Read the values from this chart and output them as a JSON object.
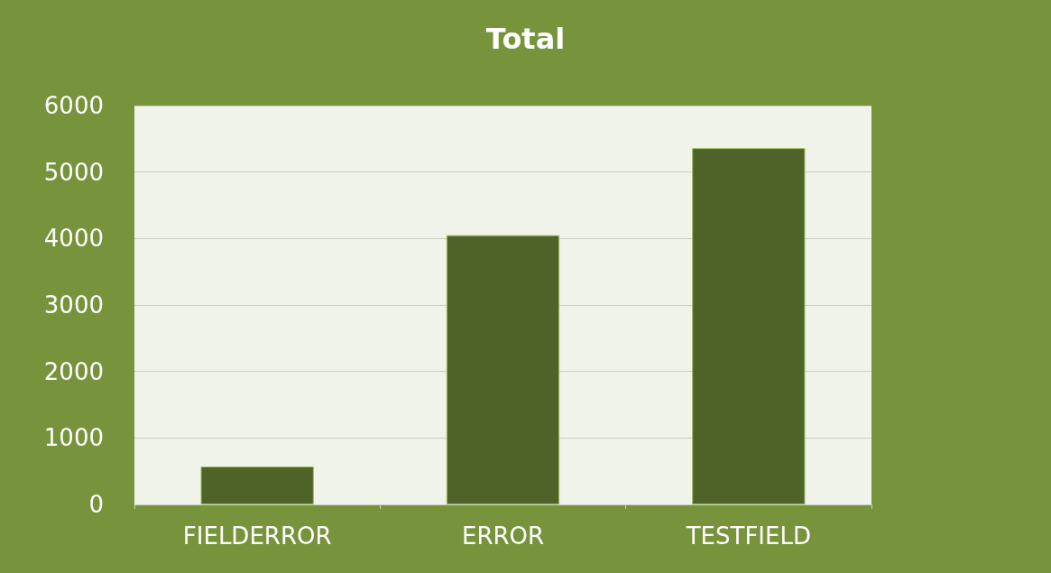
{
  "chart_data": {
    "type": "bar",
    "title": "Total",
    "categories": [
      "FIELDERROR",
      "ERROR",
      "TESTFIELD"
    ],
    "values": [
      570,
      4050,
      5360
    ],
    "color": "#4f6228",
    "ylim": [
      0,
      6000
    ],
    "yticks": [
      0,
      1000,
      2000,
      3000,
      4000,
      5000,
      6000
    ],
    "grid": "y"
  }
}
